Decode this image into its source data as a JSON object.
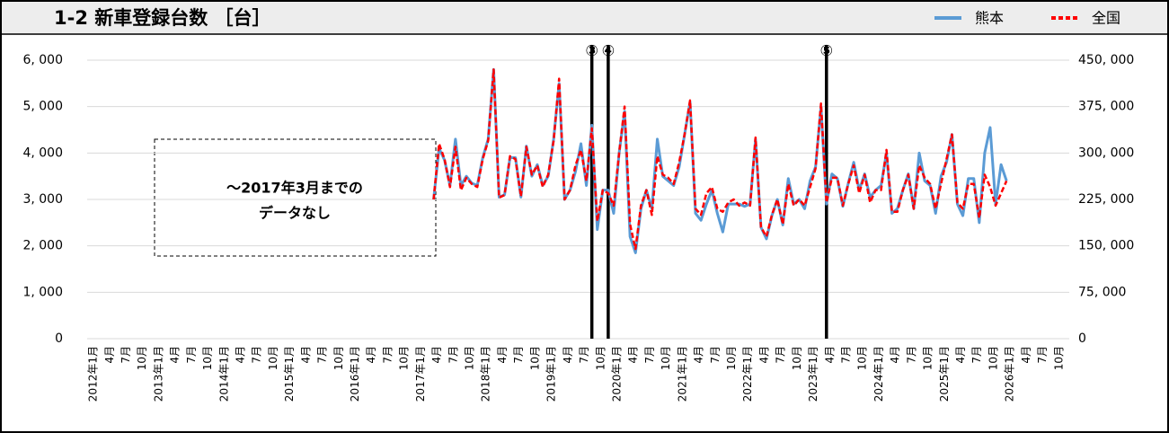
{
  "chart_data": {
    "type": "line",
    "title": "1-2 新車登録台数 ［台］",
    "annotation_box": [
      "～2017年3月までの",
      "データなし"
    ],
    "markers": [
      {
        "label": "③",
        "index": 92
      },
      {
        "label": "④",
        "index": 95
      },
      {
        "label": "⑤",
        "index": 135
      }
    ],
    "categories": [
      "2012年1月",
      null,
      null,
      "4月",
      null,
      null,
      "7月",
      null,
      null,
      "10月",
      null,
      null,
      "2013年1月",
      null,
      null,
      "4月",
      null,
      null,
      "7月",
      null,
      null,
      "10月",
      null,
      null,
      "2014年1月",
      null,
      null,
      "4月",
      null,
      null,
      "7月",
      null,
      null,
      "10月",
      null,
      null,
      "2015年1月",
      null,
      null,
      "4月",
      null,
      null,
      "7月",
      null,
      null,
      "10月",
      null,
      null,
      "2016年1月",
      null,
      null,
      "4月",
      null,
      null,
      "7月",
      null,
      null,
      "10月",
      null,
      null,
      "2017年1月",
      null,
      null,
      "4月",
      null,
      null,
      "7月",
      null,
      null,
      "10月",
      null,
      null,
      "2018年1月",
      null,
      null,
      "4月",
      null,
      null,
      "7月",
      null,
      null,
      "10月",
      null,
      null,
      "2019年1月",
      null,
      null,
      "4月",
      null,
      null,
      "7月",
      null,
      null,
      "10月",
      null,
      null,
      "2020年1月",
      null,
      null,
      "4月",
      null,
      null,
      "7月",
      null,
      null,
      "10月",
      null,
      null,
      "2021年1月",
      null,
      null,
      "4月",
      null,
      null,
      "7月",
      null,
      null,
      "10月",
      null,
      null,
      "2022年1月",
      null,
      null,
      "4月",
      null,
      null,
      "7月",
      null,
      null,
      "10月",
      null,
      null,
      "2023年1月",
      null,
      null,
      "4月",
      null,
      null,
      "7月",
      null,
      null,
      "10月",
      null,
      null,
      "2024年1月",
      null,
      null,
      "4月",
      null,
      null,
      "7月",
      null,
      null,
      "10月",
      null,
      null,
      "2025年1月",
      null,
      null,
      "4月",
      null,
      null,
      "7月",
      null,
      null,
      "10月",
      null,
      null,
      "2026年1月",
      null,
      null,
      "4月",
      null,
      null,
      "7月",
      null,
      null,
      "10月",
      null,
      null
    ],
    "series": [
      {
        "name": "熊本",
        "color": "#5b9bd5",
        "axis": "y",
        "values": [
          null,
          null,
          null,
          null,
          null,
          null,
          null,
          null,
          null,
          null,
          null,
          null,
          null,
          null,
          null,
          null,
          null,
          null,
          null,
          null,
          null,
          null,
          null,
          null,
          null,
          null,
          null,
          null,
          null,
          null,
          null,
          null,
          null,
          null,
          null,
          null,
          null,
          null,
          null,
          null,
          null,
          null,
          null,
          null,
          null,
          null,
          null,
          null,
          null,
          null,
          null,
          null,
          null,
          null,
          null,
          null,
          null,
          null,
          null,
          null,
          null,
          null,
          null,
          3000,
          4100,
          3850,
          3300,
          4300,
          3300,
          3500,
          3350,
          3300,
          3900,
          4300,
          5800,
          3050,
          3100,
          3900,
          3900,
          3050,
          4150,
          3500,
          3750,
          3300,
          3500,
          4300,
          5500,
          3000,
          3200,
          3600,
          4200,
          3300,
          4600,
          2350,
          3200,
          3200,
          2700,
          4000,
          4900,
          2200,
          1850,
          2800,
          3200,
          2800,
          4300,
          3500,
          3400,
          3300,
          3700,
          4400,
          5100,
          2700,
          2550,
          2900,
          3200,
          2700,
          2300,
          2900,
          2900,
          2900,
          2850,
          2900,
          4300,
          2400,
          2150,
          2650,
          3000,
          2450,
          3450,
          2900,
          3000,
          2800,
          3400,
          3700,
          5000,
          2900,
          3550,
          3450,
          2850,
          3350,
          3800,
          3200,
          3550,
          3050,
          3200,
          3300,
          4000,
          2700,
          2800,
          3200,
          3550,
          2800,
          4000,
          3400,
          3300,
          2700,
          3500,
          3800,
          4400,
          2900,
          2650,
          3450,
          3450,
          2500,
          4000,
          4550,
          2900,
          3750,
          3400,
          null,
          null,
          null,
          null,
          null,
          null,
          null,
          null,
          null,
          null,
          null
        ]
      },
      {
        "name": "全国",
        "color": "#ff0000",
        "axis": "y2",
        "values": [
          null,
          null,
          null,
          null,
          null,
          null,
          null,
          null,
          null,
          null,
          null,
          null,
          null,
          null,
          null,
          null,
          null,
          null,
          null,
          null,
          null,
          null,
          null,
          null,
          null,
          null,
          null,
          null,
          null,
          null,
          null,
          null,
          null,
          null,
          null,
          null,
          null,
          null,
          null,
          null,
          null,
          null,
          null,
          null,
          null,
          null,
          null,
          null,
          null,
          null,
          null,
          null,
          null,
          null,
          null,
          null,
          null,
          null,
          null,
          null,
          null,
          null,
          null,
          225000,
          315000,
          290000,
          245000,
          310000,
          240000,
          260000,
          250000,
          245000,
          290000,
          320000,
          435000,
          228000,
          232000,
          295000,
          290000,
          230000,
          310000,
          265000,
          280000,
          245000,
          265000,
          320000,
          420000,
          225000,
          240000,
          280000,
          305000,
          255000,
          340000,
          190000,
          240000,
          235000,
          215000,
          300000,
          375000,
          185000,
          145000,
          215000,
          240000,
          200000,
          295000,
          265000,
          260000,
          250000,
          285000,
          330000,
          385000,
          210000,
          200000,
          235000,
          245000,
          210000,
          205000,
          220000,
          225000,
          215000,
          220000,
          215000,
          325000,
          180000,
          165000,
          200000,
          225000,
          185000,
          250000,
          215000,
          225000,
          215000,
          245000,
          275000,
          380000,
          220000,
          260000,
          260000,
          215000,
          250000,
          280000,
          235000,
          265000,
          220000,
          240000,
          240000,
          305000,
          205000,
          205000,
          240000,
          265000,
          210000,
          280000,
          260000,
          250000,
          210000,
          250000,
          290000,
          330000,
          220000,
          210000,
          250000,
          250000,
          195000,
          265000,
          245000,
          215000,
          235000,
          255000,
          null,
          null,
          null,
          null,
          null,
          null,
          null,
          null,
          null,
          null,
          null
        ]
      }
    ],
    "ylim": [
      0,
      6000
    ],
    "yticks": [
      0,
      {
        "value": 1000,
        "label": "1, 000"
      },
      {
        "value": 2000,
        "label": "2, 000"
      },
      {
        "value": 3000,
        "label": "3, 000"
      },
      {
        "value": 4000,
        "label": "4, 000"
      },
      {
        "value": 5000,
        "label": "5, 000"
      },
      {
        "value": 6000,
        "label": "6, 000"
      }
    ],
    "y2lim": [
      0,
      450000
    ],
    "y2ticks": [
      0,
      {
        "value": 75000,
        "label": "75, 000"
      },
      {
        "value": 150000,
        "label": "150, 000"
      },
      {
        "value": 225000,
        "label": "225, 000"
      },
      {
        "value": 300000,
        "label": "300, 000"
      },
      {
        "value": 375000,
        "label": "375, 000"
      },
      {
        "value": 450000,
        "label": "450, 000"
      }
    ],
    "grid": true,
    "legend": "top-right"
  }
}
